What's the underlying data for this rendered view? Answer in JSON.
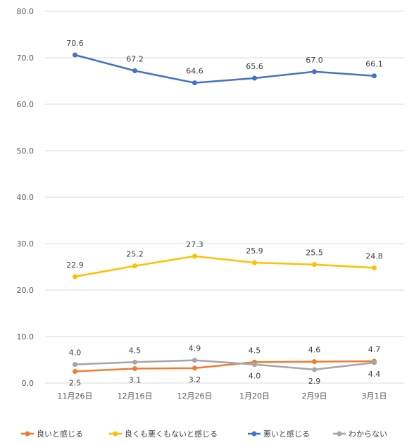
{
  "chart_data": {
    "type": "line",
    "categories": [
      "11月26日",
      "12月16日",
      "12月26日",
      "1月20日",
      "2月9日",
      "3月1日"
    ],
    "ylim": [
      0,
      80
    ],
    "yticks": [
      "0.0",
      "10.0",
      "20.0",
      "30.0",
      "40.0",
      "50.0",
      "60.0",
      "70.0",
      "80.0"
    ],
    "grid": true,
    "legend_position": "bottom",
    "series": [
      {
        "name": "良いと感じる",
        "color": "#ED7D31",
        "values": [
          2.5,
          3.1,
          3.2,
          4.5,
          4.6,
          4.7
        ],
        "labels": [
          "2.5",
          "3.1",
          "3.2",
          "4.5",
          "4.6",
          "4.7"
        ],
        "label_pos": [
          "below",
          "below",
          "below",
          "above",
          "above",
          "above"
        ]
      },
      {
        "name": "良くも悪くもないと感じる",
        "color": "#FFC000",
        "values": [
          22.9,
          25.2,
          27.3,
          25.9,
          25.5,
          24.8
        ],
        "labels": [
          "22.9",
          "25.2",
          "27.3",
          "25.9",
          "25.5",
          "24.8"
        ],
        "label_pos": [
          "above",
          "above",
          "above",
          "above",
          "above",
          "above"
        ]
      },
      {
        "name": "悪いと感じる",
        "color": "#4472C4",
        "values": [
          70.6,
          67.2,
          64.6,
          65.6,
          67.0,
          66.1
        ],
        "labels": [
          "70.6",
          "67.2",
          "64.6",
          "65.6",
          "67.0",
          "66.1"
        ],
        "label_pos": [
          "above",
          "above",
          "above",
          "above",
          "above",
          "above"
        ]
      },
      {
        "name": "わからない",
        "color": "#A5A5A5",
        "values": [
          4.0,
          4.5,
          4.9,
          4.0,
          2.9,
          4.4
        ],
        "labels": [
          "4.0",
          "4.5",
          "4.9",
          "4.0",
          "2.9",
          "4.4"
        ],
        "label_pos": [
          "above",
          "above",
          "above",
          "below",
          "below",
          "below"
        ]
      }
    ]
  }
}
